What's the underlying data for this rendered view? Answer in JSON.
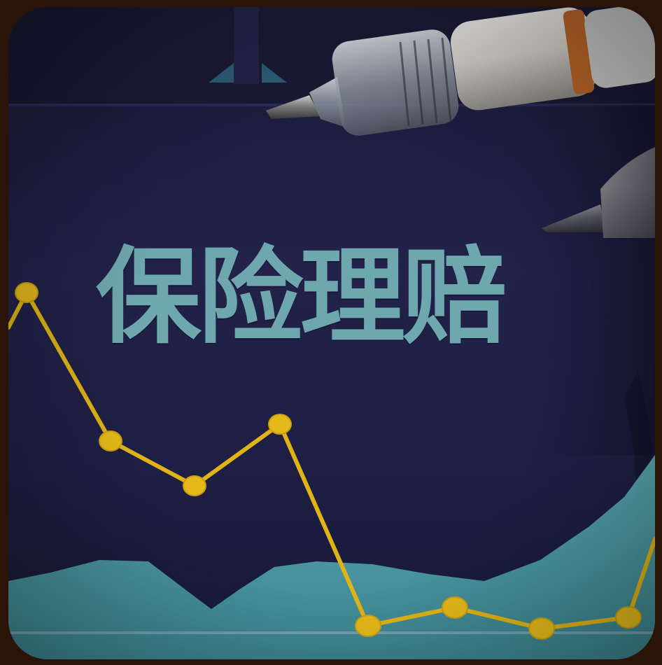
{
  "image": {
    "title_text": "保险理赔",
    "colors": {
      "background_outer": "#2a1408",
      "paper": "#1e1f44",
      "title": "#6fa7ae",
      "line": "#e0b416",
      "area": "#5fb7bd"
    },
    "objects": [
      "pen-top",
      "pen-right",
      "yellow-line-chart",
      "teal-area-chart"
    ]
  }
}
